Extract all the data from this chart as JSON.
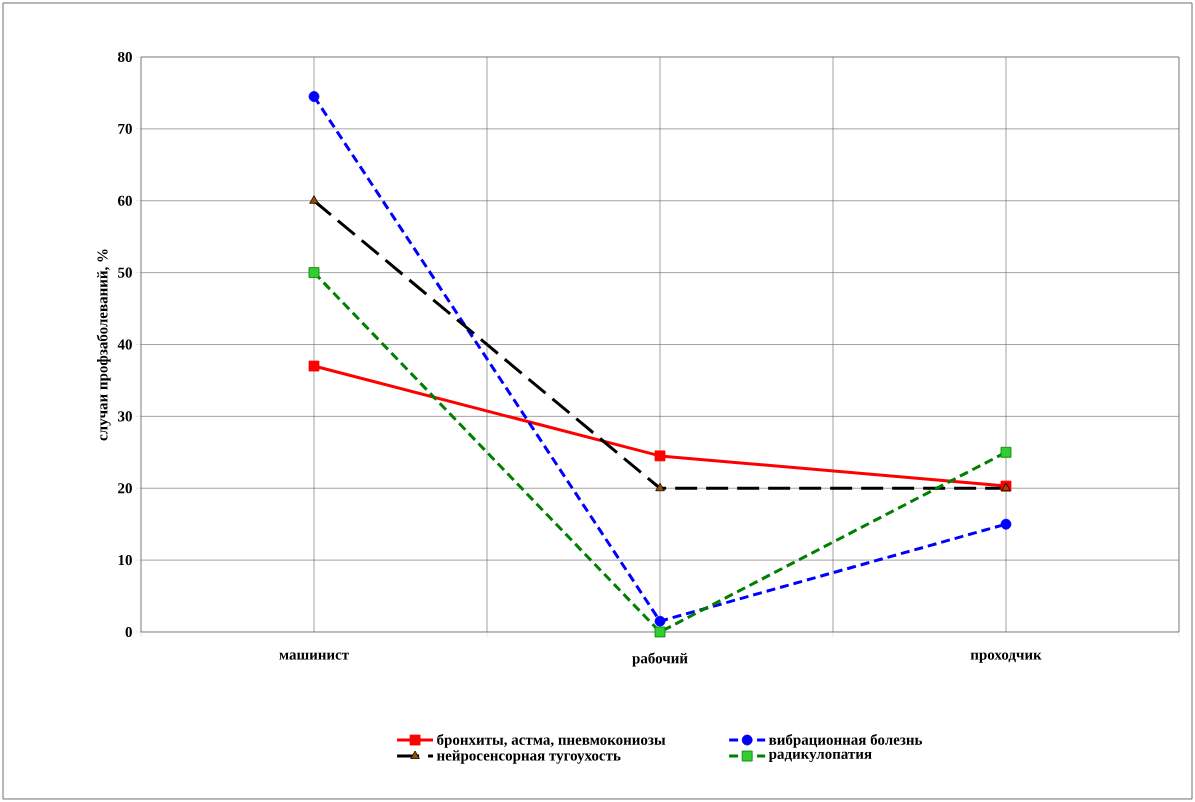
{
  "chart_data": {
    "type": "line",
    "ylabel": "случаи профзаболеваний, %",
    "categories": [
      "машинист",
      "рабочий",
      "проходчик"
    ],
    "series": [
      {
        "name": "бронхиты, астма, пневмокониозы",
        "color": "#ff0000",
        "values": [
          37,
          24.5,
          20.3
        ],
        "marker": "square",
        "line_style": "solid"
      },
      {
        "name": "вибрационная болезнь",
        "color": "#0000ff",
        "values": [
          74.5,
          1.5,
          15
        ],
        "marker": "circle",
        "line_style": "dashed"
      },
      {
        "name": "нейросенсорная тугоухость",
        "color": "#000000",
        "values": [
          60,
          20,
          20
        ],
        "marker": "triangle",
        "line_style": "dashed"
      },
      {
        "name": "радикулопатия",
        "color": "#008000",
        "values": [
          50,
          0,
          25
        ],
        "marker": "square",
        "line_style": "dashed"
      }
    ],
    "ylim": [
      0,
      80
    ],
    "yticks": [
      0,
      10,
      20,
      30,
      40,
      50,
      60,
      70,
      80
    ],
    "grid": true,
    "legend": "bottom"
  }
}
